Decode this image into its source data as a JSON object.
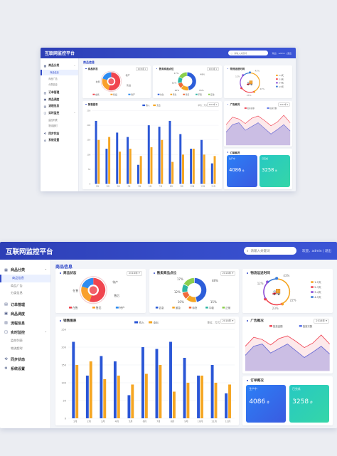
{
  "app": {
    "title": "互联网监控平台",
    "search_placeholder": "请输入关键词",
    "user": "欢迎，admin | 退出"
  },
  "sidebar": {
    "groups": [
      {
        "label": "商品分类",
        "icon": "goods-icon",
        "items": [
          {
            "label": "商品信息",
            "active": true
          },
          {
            "label": "商品广告",
            "active": false
          },
          {
            "label": "分类信息",
            "active": false
          }
        ]
      },
      {
        "label": "订单管理",
        "icon": "order-icon",
        "items": []
      },
      {
        "label": "商品调度",
        "icon": "dispatch-icon",
        "items": []
      },
      {
        "label": "流程信息",
        "icon": "flow-icon",
        "items": []
      },
      {
        "label": "实时监控",
        "icon": "monitor-icon",
        "items": [
          {
            "label": "监控列表",
            "active": false
          },
          {
            "label": "物流超时",
            "active": false
          }
        ]
      },
      {
        "label": "同步状态",
        "icon": "sync-icon",
        "items": []
      },
      {
        "label": "系统设置",
        "icon": "gear-icon",
        "items": []
      }
    ]
  },
  "main": {
    "title": "商品信息"
  },
  "cards": {
    "goods_status": {
      "title": "商品状态",
      "year": "2018年"
    },
    "ship_point": {
      "title": "售卖商品点位",
      "year": "2018年"
    },
    "logistics": {
      "title": "物流运送时间"
    },
    "sales": {
      "title": "销售图表",
      "unit": "单位：万元",
      "year": "2018年"
    },
    "ads": {
      "title": "广告概况",
      "year": "2018年"
    },
    "orders": {
      "title": "订单概况"
    }
  },
  "stats": [
    {
      "label": "生产中",
      "value": "4086",
      "unit": "件",
      "color": "#2c7ff6"
    },
    {
      "label": "已完成",
      "value": "3258",
      "unit": "件",
      "color": "#27c9c2"
    }
  ],
  "chart_data": [
    {
      "type": "pie",
      "title": "商品状态",
      "series": [
        {
          "name": "在售",
          "value": 55,
          "color": "#f0454f"
        },
        {
          "name": "售后",
          "value": 25,
          "color": "#f9a02c"
        },
        {
          "name": "待产",
          "value": 20,
          "color": "#2f8cf0"
        }
      ],
      "annotations": [
        "待产",
        "售后",
        "在售"
      ]
    },
    {
      "type": "pie",
      "title": "售卖商品点位",
      "series": [
        {
          "name": "告急",
          "value": 48,
          "color": "#2d5ed9"
        },
        {
          "name": "紧急",
          "value": 15,
          "color": "#f5a623"
        },
        {
          "name": "待货",
          "value": 10,
          "color": "#f06b3b"
        },
        {
          "name": "平稳",
          "value": 12,
          "color": "#2bb5a4"
        },
        {
          "name": "正常",
          "value": 17,
          "color": "#8ccf4d"
        }
      ],
      "labels": [
        "48%",
        "15%",
        "10%",
        "12%",
        "17%"
      ]
    },
    {
      "type": "pie",
      "title": "物流运送时间",
      "series": [
        {
          "name": "1-2天",
          "value": 43,
          "color": "#f5a623"
        },
        {
          "name": "2-3天",
          "value": 23,
          "color": "#f0454f"
        },
        {
          "name": "3-4天",
          "value": 22,
          "color": "#8a4bd6"
        },
        {
          "name": "4-5天",
          "value": 12,
          "color": "#3a7bd5"
        }
      ],
      "labels": [
        "43%",
        "12%",
        "22%",
        "23%"
      ]
    },
    {
      "type": "bar",
      "title": "销售图表",
      "categories": [
        "1月",
        "2月",
        "3月",
        "4月",
        "5月",
        "6月",
        "7月",
        "8月",
        "9月",
        "10月",
        "11月",
        "12月"
      ],
      "series": [
        {
          "name": "收入",
          "color": "#2a56d6",
          "values": [
            215,
            120,
            175,
            160,
            65,
            200,
            195,
            215,
            170,
            120,
            150,
            70
          ]
        },
        {
          "name": "支出",
          "color": "#f5a623",
          "values": [
            150,
            160,
            110,
            120,
            95,
            125,
            150,
            75,
            100,
            120,
            100,
            95
          ]
        }
      ],
      "ylim": [
        0,
        250
      ],
      "yticks": [
        0,
        50,
        100,
        150,
        200,
        250
      ],
      "legend": "top"
    },
    {
      "type": "area",
      "title": "广告概况",
      "x": [
        1,
        2,
        3,
        4,
        5,
        6,
        7,
        8,
        9,
        10,
        11
      ],
      "series": [
        {
          "name": "投放金额",
          "color": "#f04d5c",
          "values": [
            55,
            75,
            70,
            58,
            72,
            78,
            66,
            52,
            62,
            80,
            60
          ]
        },
        {
          "name": "投放次数",
          "color": "#5b74e8",
          "values": [
            35,
            55,
            60,
            40,
            50,
            60,
            45,
            30,
            42,
            55,
            38
          ]
        }
      ],
      "legend": "top"
    }
  ]
}
